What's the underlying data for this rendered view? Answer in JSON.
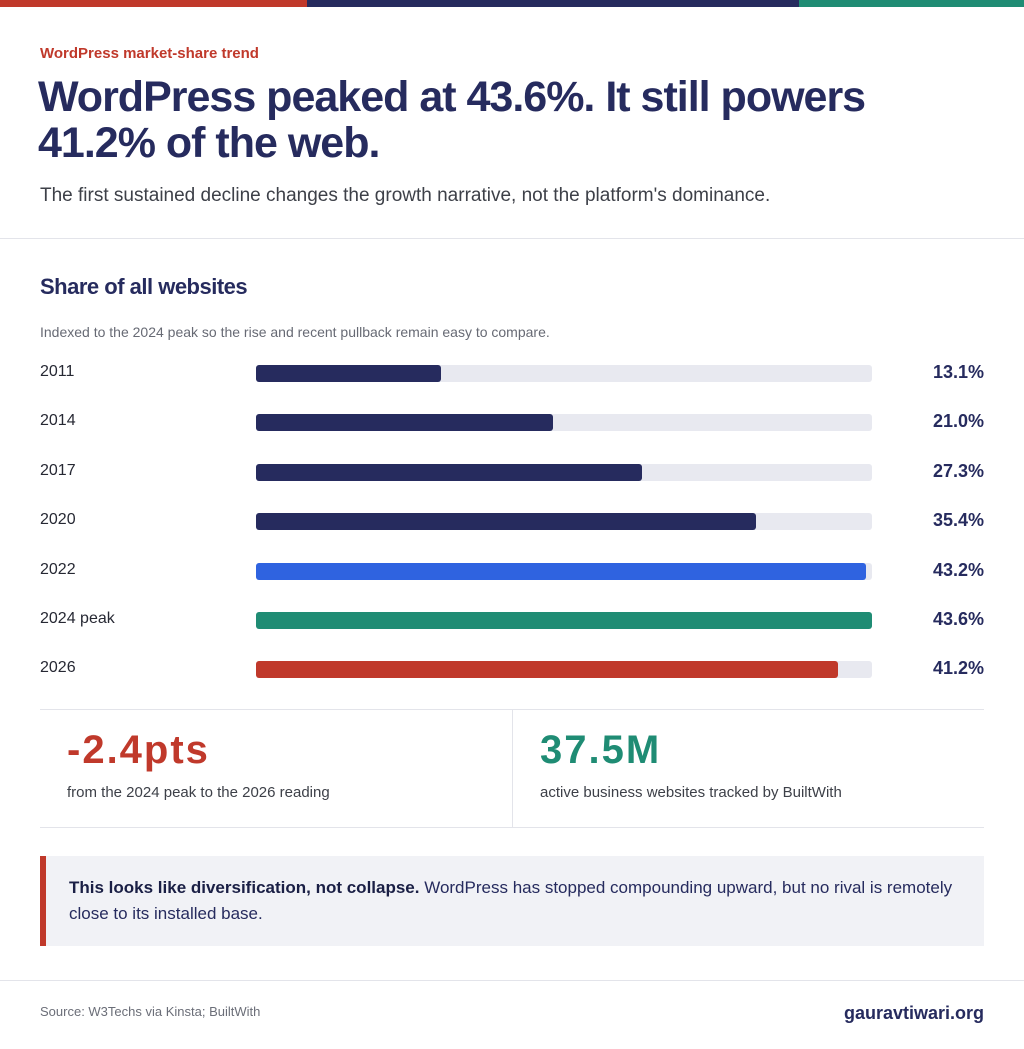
{
  "colors": {
    "navy": "#262b5e",
    "blue": "#2f63e0",
    "teal": "#1f8c74",
    "red": "#c0392b",
    "track": "#e8e9f0"
  },
  "header": {
    "eyebrow": "WordPress market-share trend",
    "headline": "WordPress peaked at 43.6%. It still powers 41.2% of the web.",
    "subhead": "The first sustained decline changes the growth narrative, not the platform's dominance."
  },
  "chart_data": {
    "type": "bar",
    "orientation": "horizontal",
    "title": "Share of all websites",
    "subtitle": "Indexed to the 2024 peak so the rise and recent pullback remain easy to compare.",
    "categories": [
      "2011",
      "2014",
      "2017",
      "2020",
      "2022",
      "2024 peak",
      "2026"
    ],
    "values": [
      13.1,
      21.0,
      27.3,
      35.4,
      43.2,
      43.6,
      41.2
    ],
    "value_labels": [
      "13.1%",
      "21.0%",
      "27.3%",
      "35.4%",
      "43.2%",
      "43.6%",
      "41.2%"
    ],
    "bar_colors": [
      "#262b5e",
      "#262b5e",
      "#262b5e",
      "#262b5e",
      "#2f63e0",
      "#1f8c74",
      "#c0392b"
    ],
    "xlim": [
      0,
      43.6
    ],
    "grid": false,
    "legend": "none"
  },
  "stats": [
    {
      "value": "-2.4pts",
      "caption": "from the 2024 peak to the 2026 reading",
      "color": "#c0392b"
    },
    {
      "value": "37.5M",
      "caption": "active business websites tracked by BuiltWith",
      "color": "#1f8c74"
    }
  ],
  "callout": {
    "bold": "This looks like diversification, not collapse.",
    "text": " WordPress has stopped compounding upward, but no rival is remotely close to its installed base."
  },
  "footer": {
    "source": "Source: W3Techs via Kinsta; BuiltWith",
    "site": "gauravtiwari.org"
  }
}
